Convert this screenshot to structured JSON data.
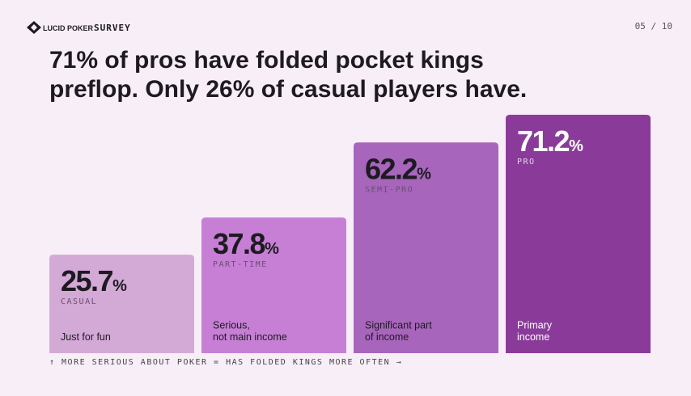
{
  "header": {
    "brand": "LUCID POKER",
    "section": "SURVEY",
    "page": "05 / 10"
  },
  "chart_data": {
    "type": "bar",
    "title": [
      "71% of pros have folded pocket kings",
      "preflop. Only 26% of casual players have."
    ],
    "categories": [
      "CASUAL",
      "PART-TIME",
      "SEMI-PRO",
      "PRO"
    ],
    "descriptions": [
      [
        "Just for fun"
      ],
      [
        "Serious,",
        "not main income"
      ],
      [
        "Significant part",
        "of income"
      ],
      [
        "Primary",
        "income"
      ]
    ],
    "values": [
      25.7,
      37.8,
      62.2,
      71.2
    ],
    "unit": "%",
    "colors": [
      "#d3a9d6",
      "#c67fd5",
      "#a765bc",
      "#8a3b9a"
    ],
    "footnote": "↑ MORE SERIOUS ABOUT POKER = HAS FOLDED KINGS MORE OFTEN →"
  }
}
